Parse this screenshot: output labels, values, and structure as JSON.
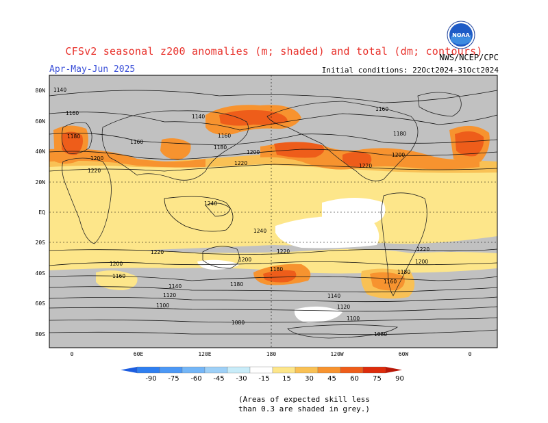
{
  "header": {
    "title": "CFSv2 seasonal z200 anomalies (m; shaded) and total (dm; contours)",
    "season": "Apr-May-Jun 2025",
    "agency": "NWS/NCEP/CPC",
    "initial_conditions": "Initial conditions: 22Oct2024-31Oct2024",
    "logo_text": "NOAA"
  },
  "axes": {
    "lat_labels": [
      "80N",
      "60N",
      "40N",
      "20N",
      "EQ",
      "20S",
      "40S",
      "60S",
      "80S"
    ],
    "lon_labels": [
      "0",
      "60E",
      "120E",
      "180",
      "120W",
      "60W",
      "0"
    ]
  },
  "contour_labels": [
    "1140",
    "1160",
    "1180",
    "1200",
    "1220",
    "1140",
    "1160",
    "1180",
    "1200",
    "1220",
    "1160",
    "1180",
    "1200",
    "1220",
    "1240",
    "1240",
    "1220",
    "1220",
    "1200",
    "1160",
    "1180",
    "1180",
    "1200",
    "1220",
    "1160",
    "1140",
    "1120",
    "1100",
    "1080",
    "1140",
    "1120",
    "1100",
    "1080",
    "1200",
    "1180",
    "1160"
  ],
  "colorbar": {
    "labels": [
      "-90",
      "-75",
      "-60",
      "-45",
      "-30",
      "-15",
      "15",
      "30",
      "45",
      "60",
      "75",
      "90"
    ],
    "colors": [
      "#1c5de0",
      "#2f7ff0",
      "#4c98f5",
      "#74b6f7",
      "#9ed0f7",
      "#c8ecf9",
      "#ffffff",
      "#fde68a",
      "#f9c155",
      "#f7932f",
      "#ee5d1a",
      "#dd2c0c",
      "#b81707"
    ]
  },
  "note": {
    "line1": "(Areas of expected skill less",
    "line2": "than 0.3 are shaded in grey.)"
  },
  "colors": {
    "grey": "#c1c1c1",
    "title": "#e8302a",
    "season": "#3a4fd8"
  }
}
